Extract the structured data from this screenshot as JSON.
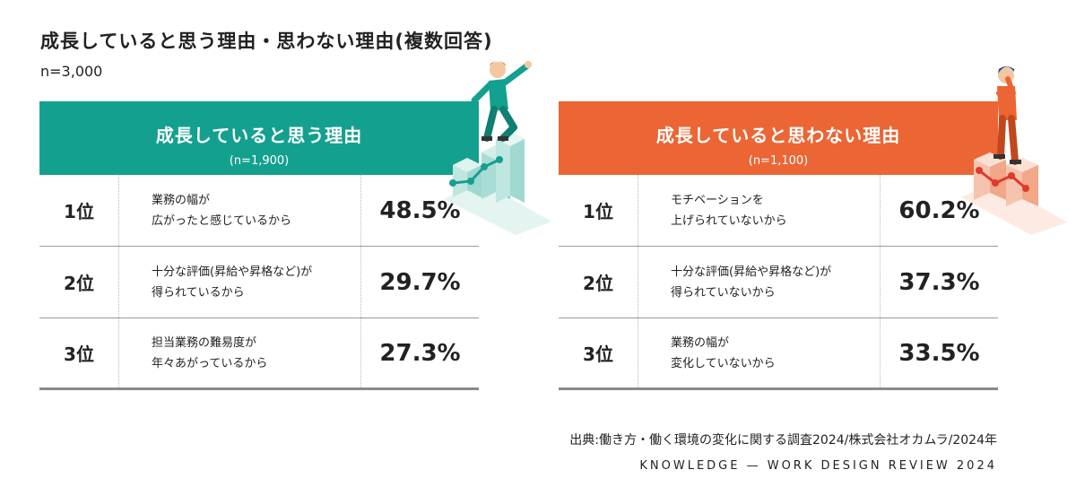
{
  "title": "成長していると思う理由・思わない理由(複数回答)",
  "n_total": "n=3,000",
  "panels": [
    {
      "header": "成長していると思う理由",
      "n": "(n=1,900)",
      "color": "#14a08e",
      "rows": [
        {
          "rank": "1位",
          "reason": "業務の幅が\n広がったと感じているから",
          "percent": "48.5%"
        },
        {
          "rank": "2位",
          "reason": "十分な評価(昇給や昇格など)が\n得られているから",
          "percent": "29.7%"
        },
        {
          "rank": "3位",
          "reason": "担当業務の難易度が\n年々あがっているから",
          "percent": "27.3%"
        }
      ]
    },
    {
      "header": "成長していると思わない理由",
      "n": "(n=1,100)",
      "color": "#ec6534",
      "rows": [
        {
          "rank": "1位",
          "reason": "モチベーションを\n上げられていないから",
          "percent": "60.2%"
        },
        {
          "rank": "2位",
          "reason": "十分な評価(昇給や昇格など)が\n得られていないから",
          "percent": "37.3%"
        },
        {
          "rank": "3位",
          "reason": "業務の幅が\n変化していないから",
          "percent": "33.5%"
        }
      ]
    }
  ],
  "chart_data": {
    "type": "table",
    "title": "成長していると思う理由・思わない理由(複数回答)",
    "n": "n=3,000",
    "tables": [
      {
        "name": "成長していると思う理由",
        "n": "(n=1,900)",
        "ranks": [
          "1位",
          "2位",
          "3位"
        ],
        "reasons": [
          "業務の幅が広がったと感じているから",
          "十分な評価(昇給や昇格など)が得られているから",
          "担当業務の難易度が年々あがっているから"
        ],
        "values": [
          48.5,
          29.7,
          27.3
        ]
      },
      {
        "name": "成長していると思わない理由",
        "n": "(n=1,100)",
        "ranks": [
          "1位",
          "2位",
          "3位"
        ],
        "reasons": [
          "モチベーションを上げられていないから",
          "十分な評価(昇給や昇格など)が得られていないから",
          "業務の幅が変化していないから"
        ],
        "values": [
          60.2,
          37.3,
          33.5
        ]
      }
    ]
  },
  "source": "出典:働き方・働く環境の変化に関する調査2024/株式会社オカムラ/2024年",
  "brand": "KNOWLEDGE — WORK DESIGN REVIEW 2024",
  "illustrations": {
    "left": "rising-businessman-illustration",
    "right": "thinking-businessman-illustration"
  }
}
